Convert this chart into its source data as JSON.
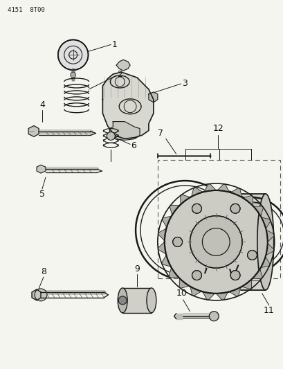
{
  "title_code": "4151  8T00",
  "bg_color": "#f5f5f0",
  "line_color": "#1a1a1a",
  "label_color": "#111111",
  "fig_w": 4.1,
  "fig_h": 5.33,
  "dpi": 100
}
